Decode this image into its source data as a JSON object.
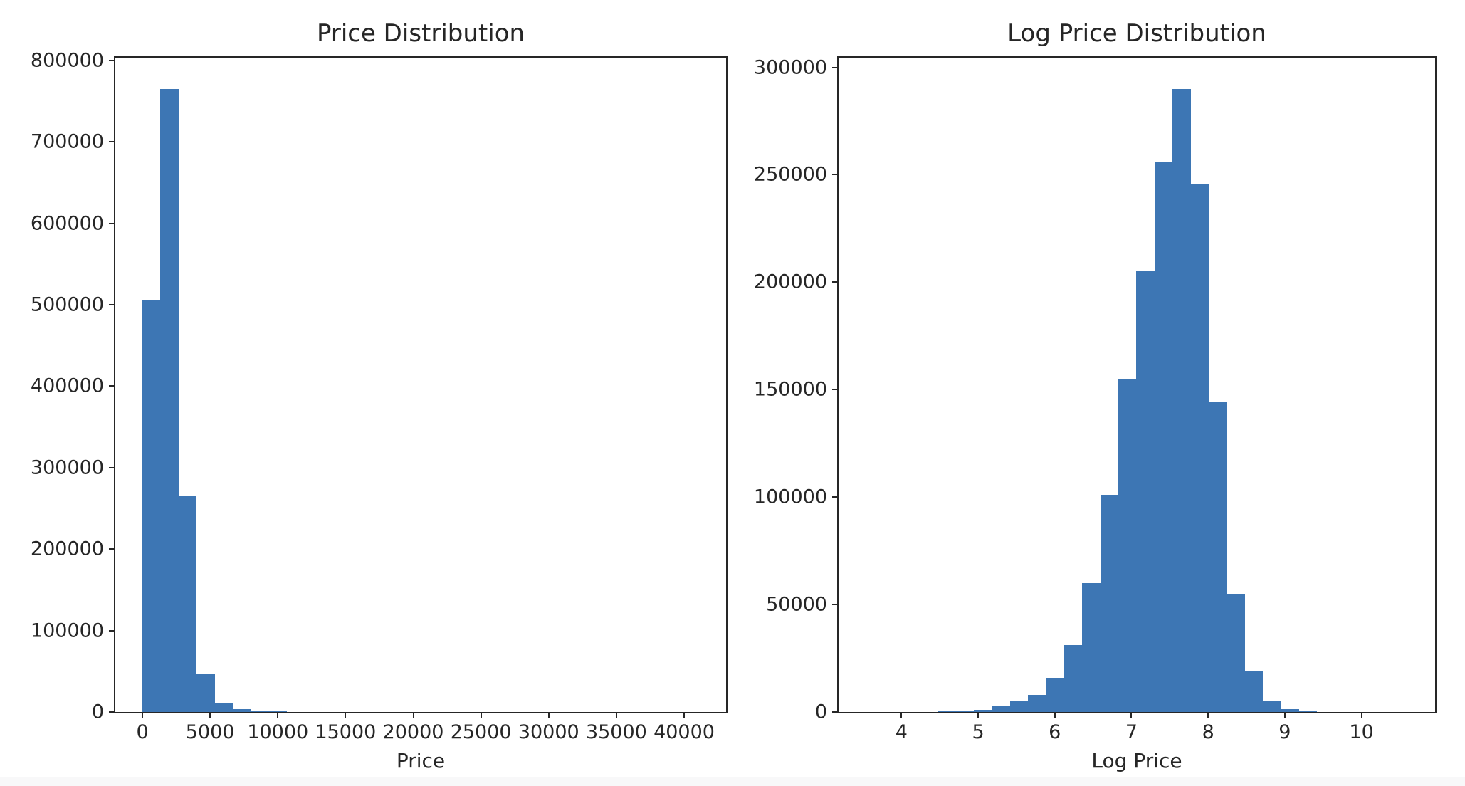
{
  "figure": {
    "background": "#ffffff",
    "text_color": "#262626",
    "spine_color": "#262626",
    "bottom_strip_color": "#f8f8f9"
  },
  "chart_data": [
    {
      "type": "bar",
      "variant": "histogram",
      "title": "Price Distribution",
      "xlabel": "Price",
      "ylabel": "",
      "bar_color": "#3d76b4",
      "grid": false,
      "legend": null,
      "xlim": [
        -2000,
        43100
      ],
      "ylim": [
        0,
        803250
      ],
      "x_ticks": [
        0,
        5000,
        10000,
        15000,
        20000,
        25000,
        30000,
        35000,
        40000
      ],
      "y_ticks": [
        0,
        100000,
        200000,
        300000,
        400000,
        500000,
        600000,
        700000,
        800000
      ],
      "bin_edges": [
        0,
        1333,
        2667,
        4000,
        5333,
        6667,
        8000,
        9333,
        10667,
        12000,
        13333,
        14667,
        16000,
        17333,
        18667,
        20000,
        21333,
        22667,
        24000,
        25333,
        26667,
        28000,
        29333,
        30667,
        32000,
        33333,
        34667,
        36000,
        37333,
        38667,
        40000
      ],
      "counts": [
        505000,
        765000,
        265000,
        47000,
        10500,
        3500,
        1700,
        700,
        300,
        150,
        80,
        50,
        30,
        20,
        15,
        10,
        8,
        6,
        5,
        4,
        3,
        3,
        2,
        2,
        2,
        1,
        1,
        1,
        1,
        1
      ]
    },
    {
      "type": "bar",
      "variant": "histogram",
      "title": "Log Price Distribution",
      "xlabel": "Log Price",
      "ylabel": "",
      "bar_color": "#3d76b4",
      "grid": false,
      "legend": null,
      "xlim": [
        3.18,
        10.96
      ],
      "ylim": [
        0,
        304500
      ],
      "x_ticks": [
        4,
        5,
        6,
        7,
        8,
        9,
        10
      ],
      "y_ticks": [
        0,
        50000,
        100000,
        150000,
        200000,
        250000,
        300000
      ],
      "bin_edges": [
        3.53,
        3.766,
        4.001,
        4.237,
        4.473,
        4.708,
        4.944,
        5.18,
        5.415,
        5.651,
        5.887,
        6.122,
        6.358,
        6.594,
        6.829,
        7.065,
        7.301,
        7.536,
        7.772,
        8.008,
        8.243,
        8.479,
        8.715,
        8.95,
        9.186,
        9.422,
        9.657,
        9.893,
        10.129,
        10.364,
        10.6
      ],
      "counts": [
        8,
        4,
        3,
        3,
        400,
        500,
        1000,
        2600,
        5000,
        7800,
        16000,
        31000,
        60000,
        101000,
        155000,
        205000,
        256000,
        290000,
        246000,
        144000,
        55000,
        19000,
        5000,
        1400,
        400,
        120,
        60,
        30,
        15,
        8
      ]
    }
  ]
}
